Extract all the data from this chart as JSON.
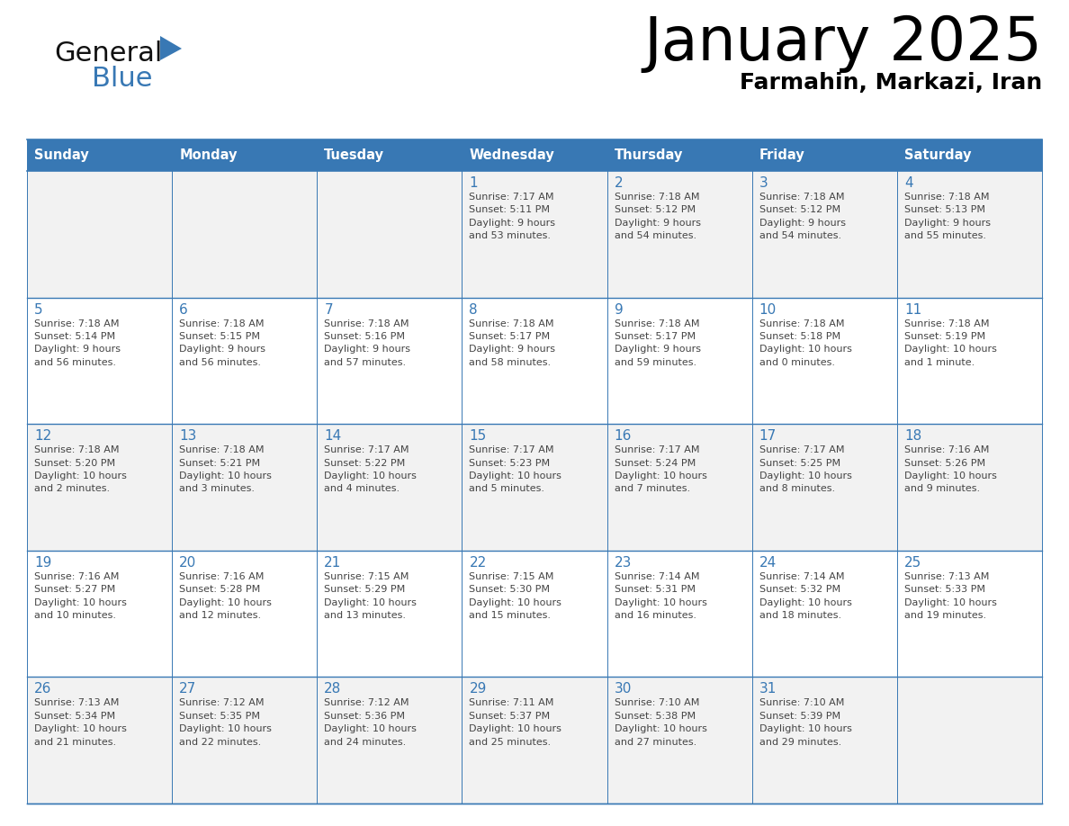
{
  "title": "January 2025",
  "subtitle": "Farmahin, Markazi, Iran",
  "days_of_week": [
    "Sunday",
    "Monday",
    "Tuesday",
    "Wednesday",
    "Thursday",
    "Friday",
    "Saturday"
  ],
  "header_bg": "#3878b4",
  "header_text": "#ffffff",
  "row_bg_odd": "#f2f2f2",
  "row_bg_even": "#ffffff",
  "border_color": "#3878b4",
  "day_num_color": "#3878b4",
  "text_color": "#444444",
  "logo_general_color": "#111111",
  "logo_blue_color": "#3878b4",
  "logo_triangle_color": "#3878b4",
  "calendar": [
    [
      {
        "day": null,
        "sunrise": null,
        "sunset": null,
        "daylight": null
      },
      {
        "day": null,
        "sunrise": null,
        "sunset": null,
        "daylight": null
      },
      {
        "day": null,
        "sunrise": null,
        "sunset": null,
        "daylight": null
      },
      {
        "day": 1,
        "sunrise": "7:17 AM",
        "sunset": "5:11 PM",
        "daylight": "9 hours\nand 53 minutes."
      },
      {
        "day": 2,
        "sunrise": "7:18 AM",
        "sunset": "5:12 PM",
        "daylight": "9 hours\nand 54 minutes."
      },
      {
        "day": 3,
        "sunrise": "7:18 AM",
        "sunset": "5:12 PM",
        "daylight": "9 hours\nand 54 minutes."
      },
      {
        "day": 4,
        "sunrise": "7:18 AM",
        "sunset": "5:13 PM",
        "daylight": "9 hours\nand 55 minutes."
      }
    ],
    [
      {
        "day": 5,
        "sunrise": "7:18 AM",
        "sunset": "5:14 PM",
        "daylight": "9 hours\nand 56 minutes."
      },
      {
        "day": 6,
        "sunrise": "7:18 AM",
        "sunset": "5:15 PM",
        "daylight": "9 hours\nand 56 minutes."
      },
      {
        "day": 7,
        "sunrise": "7:18 AM",
        "sunset": "5:16 PM",
        "daylight": "9 hours\nand 57 minutes."
      },
      {
        "day": 8,
        "sunrise": "7:18 AM",
        "sunset": "5:17 PM",
        "daylight": "9 hours\nand 58 minutes."
      },
      {
        "day": 9,
        "sunrise": "7:18 AM",
        "sunset": "5:17 PM",
        "daylight": "9 hours\nand 59 minutes."
      },
      {
        "day": 10,
        "sunrise": "7:18 AM",
        "sunset": "5:18 PM",
        "daylight": "10 hours\nand 0 minutes."
      },
      {
        "day": 11,
        "sunrise": "7:18 AM",
        "sunset": "5:19 PM",
        "daylight": "10 hours\nand 1 minute."
      }
    ],
    [
      {
        "day": 12,
        "sunrise": "7:18 AM",
        "sunset": "5:20 PM",
        "daylight": "10 hours\nand 2 minutes."
      },
      {
        "day": 13,
        "sunrise": "7:18 AM",
        "sunset": "5:21 PM",
        "daylight": "10 hours\nand 3 minutes."
      },
      {
        "day": 14,
        "sunrise": "7:17 AM",
        "sunset": "5:22 PM",
        "daylight": "10 hours\nand 4 minutes."
      },
      {
        "day": 15,
        "sunrise": "7:17 AM",
        "sunset": "5:23 PM",
        "daylight": "10 hours\nand 5 minutes."
      },
      {
        "day": 16,
        "sunrise": "7:17 AM",
        "sunset": "5:24 PM",
        "daylight": "10 hours\nand 7 minutes."
      },
      {
        "day": 17,
        "sunrise": "7:17 AM",
        "sunset": "5:25 PM",
        "daylight": "10 hours\nand 8 minutes."
      },
      {
        "day": 18,
        "sunrise": "7:16 AM",
        "sunset": "5:26 PM",
        "daylight": "10 hours\nand 9 minutes."
      }
    ],
    [
      {
        "day": 19,
        "sunrise": "7:16 AM",
        "sunset": "5:27 PM",
        "daylight": "10 hours\nand 10 minutes."
      },
      {
        "day": 20,
        "sunrise": "7:16 AM",
        "sunset": "5:28 PM",
        "daylight": "10 hours\nand 12 minutes."
      },
      {
        "day": 21,
        "sunrise": "7:15 AM",
        "sunset": "5:29 PM",
        "daylight": "10 hours\nand 13 minutes."
      },
      {
        "day": 22,
        "sunrise": "7:15 AM",
        "sunset": "5:30 PM",
        "daylight": "10 hours\nand 15 minutes."
      },
      {
        "day": 23,
        "sunrise": "7:14 AM",
        "sunset": "5:31 PM",
        "daylight": "10 hours\nand 16 minutes."
      },
      {
        "day": 24,
        "sunrise": "7:14 AM",
        "sunset": "5:32 PM",
        "daylight": "10 hours\nand 18 minutes."
      },
      {
        "day": 25,
        "sunrise": "7:13 AM",
        "sunset": "5:33 PM",
        "daylight": "10 hours\nand 19 minutes."
      }
    ],
    [
      {
        "day": 26,
        "sunrise": "7:13 AM",
        "sunset": "5:34 PM",
        "daylight": "10 hours\nand 21 minutes."
      },
      {
        "day": 27,
        "sunrise": "7:12 AM",
        "sunset": "5:35 PM",
        "daylight": "10 hours\nand 22 minutes."
      },
      {
        "day": 28,
        "sunrise": "7:12 AM",
        "sunset": "5:36 PM",
        "daylight": "10 hours\nand 24 minutes."
      },
      {
        "day": 29,
        "sunrise": "7:11 AM",
        "sunset": "5:37 PM",
        "daylight": "10 hours\nand 25 minutes."
      },
      {
        "day": 30,
        "sunrise": "7:10 AM",
        "sunset": "5:38 PM",
        "daylight": "10 hours\nand 27 minutes."
      },
      {
        "day": 31,
        "sunrise": "7:10 AM",
        "sunset": "5:39 PM",
        "daylight": "10 hours\nand 29 minutes."
      },
      {
        "day": null,
        "sunrise": null,
        "sunset": null,
        "daylight": null
      }
    ]
  ]
}
